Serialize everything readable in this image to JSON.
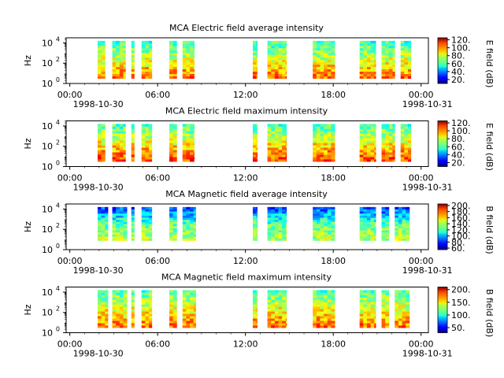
{
  "chart_data": [
    {
      "type": "heatmap",
      "title": "MCA  Electric field average intensity",
      "ylabel": "Hz",
      "colorbar_label": "E field (dB)",
      "colorbar_ticks": [
        "20.",
        "40.",
        "60.",
        "80.",
        "100.",
        "120."
      ],
      "colorbar_range": [
        10,
        125
      ],
      "y_ticks": [
        {
          "base": "10",
          "exp": "0"
        },
        {
          "base": "10",
          "exp": "2"
        },
        {
          "base": "10",
          "exp": "4"
        }
      ],
      "x_ticks": [
        "00:00",
        "06:00",
        "12:00",
        "18:00",
        "00:00"
      ],
      "x_date_labels": [
        "1998-10-30",
        "1998-10-31"
      ],
      "xlim_hours": [
        -0.25,
        24.5
      ],
      "ylim_log10_hz": [
        0,
        4.5
      ],
      "data_log10_hz_range": [
        0.5,
        4.2
      ],
      "segments_hours": [
        [
          1.9,
          2.4
        ],
        [
          2.9,
          3.8
        ],
        [
          4.2,
          4.4
        ],
        [
          4.9,
          5.6
        ],
        [
          6.8,
          7.3
        ],
        [
          7.7,
          8.5
        ],
        [
          12.5,
          12.8
        ],
        [
          13.5,
          14.8
        ],
        [
          16.6,
          18.1
        ],
        [
          19.8,
          20.9
        ],
        [
          21.3,
          22.2
        ],
        [
          22.6,
          23.3
        ]
      ],
      "value_profile": {
        "low_freq": 100,
        "mid_freq": 78,
        "high_freq": 58
      }
    },
    {
      "type": "heatmap",
      "title": "MCA  Electric field maximum intensity",
      "ylabel": "Hz",
      "colorbar_label": "E field (dB)",
      "colorbar_ticks": [
        "20.",
        "40.",
        "60.",
        "80.",
        "100.",
        "120."
      ],
      "colorbar_range": [
        10,
        125
      ],
      "y_ticks": [
        {
          "base": "10",
          "exp": "0"
        },
        {
          "base": "10",
          "exp": "2"
        },
        {
          "base": "10",
          "exp": "4"
        }
      ],
      "x_ticks": [
        "00:00",
        "06:00",
        "12:00",
        "18:00",
        "00:00"
      ],
      "x_date_labels": [
        "1998-10-30",
        "1998-10-31"
      ],
      "xlim_hours": [
        -0.25,
        24.5
      ],
      "ylim_log10_hz": [
        0,
        4.5
      ],
      "data_log10_hz_range": [
        0.5,
        4.2
      ],
      "segments_hours": [
        [
          1.9,
          2.4
        ],
        [
          2.9,
          3.8
        ],
        [
          4.2,
          4.4
        ],
        [
          4.9,
          5.6
        ],
        [
          6.8,
          7.3
        ],
        [
          7.7,
          8.5
        ],
        [
          12.5,
          12.8
        ],
        [
          13.5,
          14.8
        ],
        [
          16.6,
          18.1
        ],
        [
          19.8,
          20.9
        ],
        [
          21.3,
          22.2
        ],
        [
          22.6,
          23.3
        ]
      ],
      "value_profile": {
        "low_freq": 105,
        "mid_freq": 82,
        "high_freq": 60
      }
    },
    {
      "type": "heatmap",
      "title": "MCA  Magnetic field average intensity",
      "ylabel": "Hz",
      "colorbar_label": "B field (dB)",
      "colorbar_ticks": [
        "60.",
        "80.",
        "100.",
        "120.",
        "140.",
        "160.",
        "180.",
        "200."
      ],
      "colorbar_range": [
        55,
        205
      ],
      "y_ticks": [
        {
          "base": "10",
          "exp": "0"
        },
        {
          "base": "10",
          "exp": "2"
        },
        {
          "base": "10",
          "exp": "4"
        }
      ],
      "x_ticks": [
        "00:00",
        "06:00",
        "12:00",
        "18:00",
        "00:00"
      ],
      "x_date_labels": [
        "1998-10-30",
        "1998-10-31"
      ],
      "xlim_hours": [
        -0.25,
        24.5
      ],
      "ylim_log10_hz": [
        0,
        4.5
      ],
      "data_log10_hz_range": [
        0.9,
        4.2
      ],
      "segments_hours": [
        [
          1.9,
          2.6
        ],
        [
          2.9,
          3.9
        ],
        [
          4.2,
          4.4
        ],
        [
          4.9,
          5.6
        ],
        [
          6.8,
          7.3
        ],
        [
          7.7,
          8.6
        ],
        [
          12.5,
          12.8
        ],
        [
          13.5,
          14.8
        ],
        [
          16.6,
          18.1
        ],
        [
          19.8,
          20.9
        ],
        [
          21.3,
          21.8
        ],
        [
          22.2,
          23.2
        ]
      ],
      "value_profile": {
        "low_freq": 140,
        "mid_freq": 125,
        "high_freq": 82
      }
    },
    {
      "type": "heatmap",
      "title": "MCA  Magnetic field maximum intensity",
      "ylabel": "Hz",
      "colorbar_label": "B field (dB)",
      "colorbar_ticks": [
        "50.",
        "100.",
        "150.",
        "200."
      ],
      "colorbar_range": [
        30,
        210
      ],
      "y_ticks": [
        {
          "base": "10",
          "exp": "0"
        },
        {
          "base": "10",
          "exp": "2"
        },
        {
          "base": "10",
          "exp": "4"
        }
      ],
      "x_ticks": [
        "00:00",
        "06:00",
        "12:00",
        "18:00",
        "00:00"
      ],
      "x_date_labels": [
        "1998-10-30",
        "1998-10-31"
      ],
      "xlim_hours": [
        -0.25,
        24.5
      ],
      "ylim_log10_hz": [
        0,
        4.5
      ],
      "data_log10_hz_range": [
        0.5,
        4.2
      ],
      "segments_hours": [
        [
          1.9,
          2.6
        ],
        [
          2.9,
          3.9
        ],
        [
          4.2,
          4.4
        ],
        [
          4.9,
          5.6
        ],
        [
          6.8,
          7.3
        ],
        [
          7.7,
          8.6
        ],
        [
          12.5,
          12.8
        ],
        [
          13.5,
          14.8
        ],
        [
          16.6,
          18.1
        ],
        [
          19.8,
          20.9
        ],
        [
          21.3,
          21.8
        ],
        [
          22.2,
          23.2
        ]
      ],
      "value_profile": {
        "low_freq": 170,
        "mid_freq": 140,
        "high_freq": 110
      }
    }
  ]
}
